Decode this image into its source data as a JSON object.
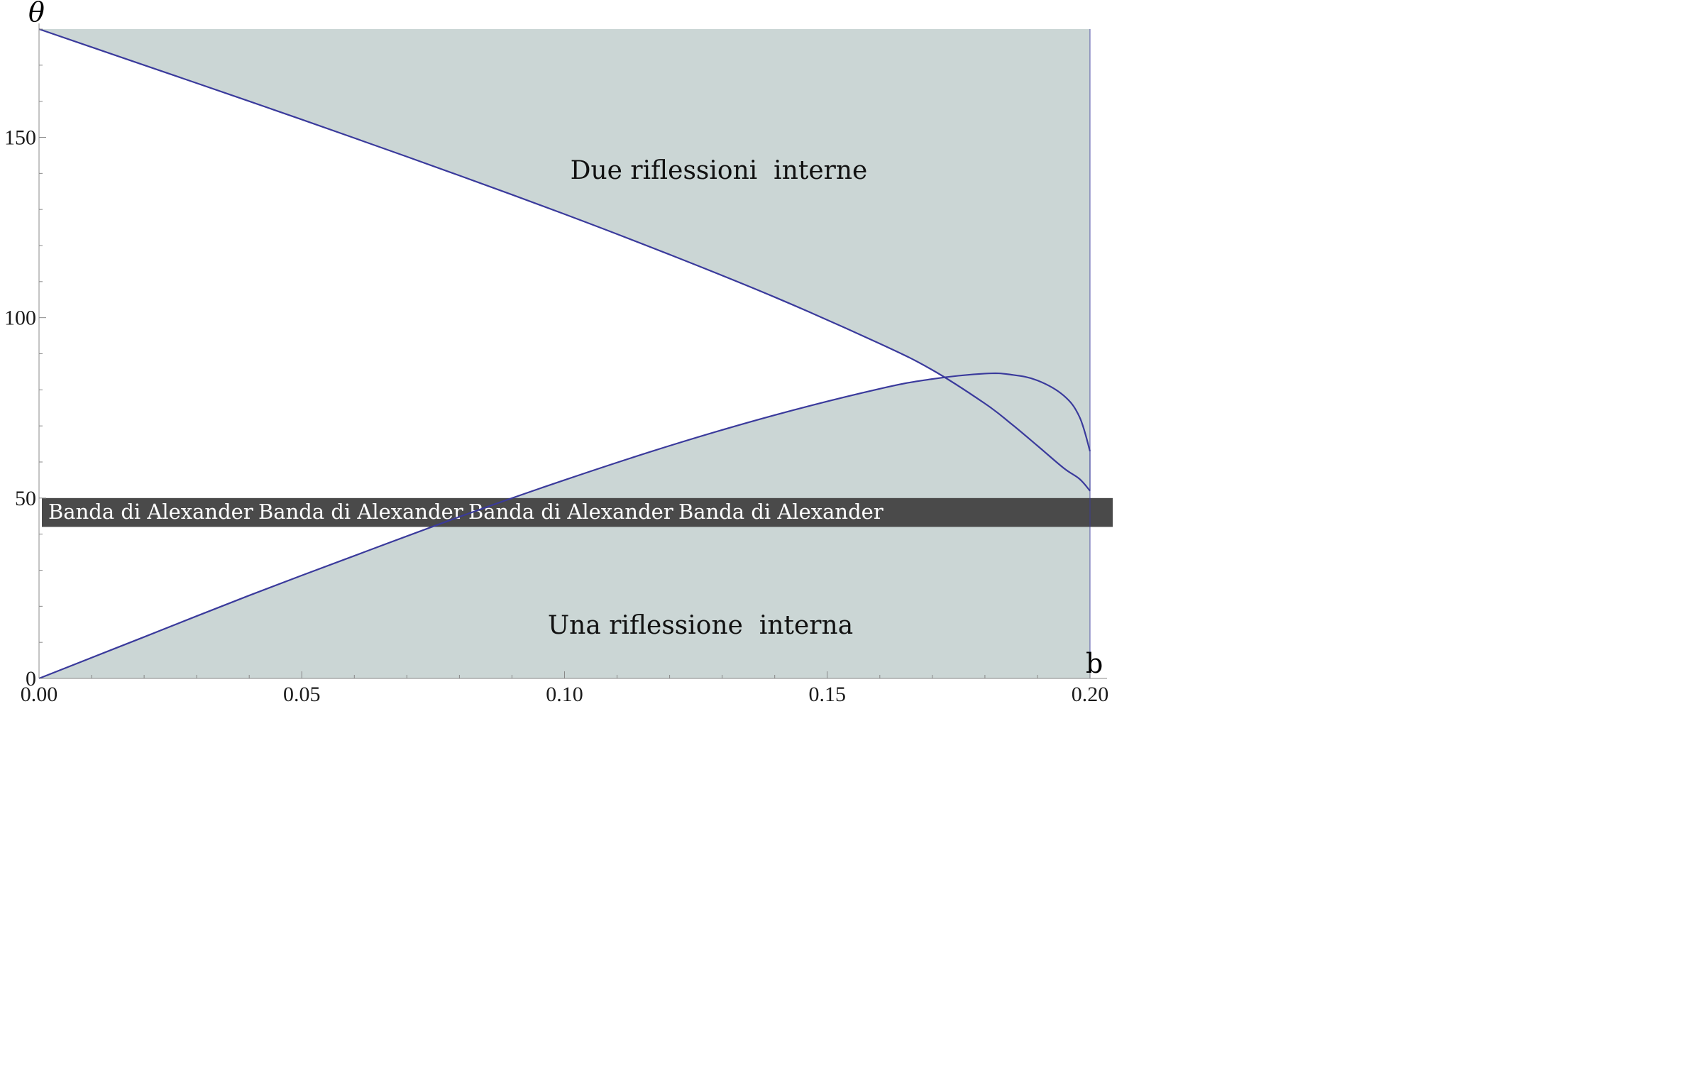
{
  "chart_data": {
    "type": "area",
    "title": "",
    "xlabel": "b",
    "ylabel": "θ",
    "xlim": [
      0,
      0.2
    ],
    "ylim": [
      0,
      180
    ],
    "x_ticks": [
      "0.00",
      "0.05",
      "0.10",
      "0.15",
      "0.20"
    ],
    "y_ticks": [
      "0",
      "50",
      "100",
      "150"
    ],
    "grid": false,
    "colors": {
      "curve": "#3a3a9c",
      "fill": "#cbd6d5",
      "band": "#4a4a4a",
      "band_text": "#ffffff",
      "axis": "#888888"
    },
    "series": [
      {
        "region": "upper",
        "x": [
          0.0,
          0.02,
          0.04,
          0.06,
          0.08,
          0.1,
          0.12,
          0.14,
          0.16,
          0.17,
          0.18,
          0.185,
          0.19,
          0.195,
          0.198,
          0.2
        ],
        "y": [
          180,
          170,
          160,
          149.8,
          139.4,
          128.7,
          117.5,
          105.7,
          92.8,
          85.5,
          76.2,
          70.6,
          64.5,
          58.3,
          55.3,
          52
        ],
        "fill_to": 180
      },
      {
        "region": "lower",
        "x": [
          0.0,
          0.02,
          0.04,
          0.06,
          0.08,
          0.1,
          0.12,
          0.14,
          0.16,
          0.17,
          0.18,
          0.185,
          0.19,
          0.195,
          0.198,
          0.2
        ],
        "y": [
          0,
          11.5,
          23,
          34,
          44.8,
          55,
          64.5,
          73,
          80.3,
          83,
          84.5,
          84.2,
          82.6,
          78.4,
          72.5,
          63
        ],
        "fill_to": 0
      }
    ],
    "band": {
      "label": "Banda di Alexander",
      "labels": [
        "Banda di Alexander",
        "Banda di Alexander",
        "Banda di Alexander",
        "Banda di Alexander"
      ],
      "y_range": [
        42,
        50
      ]
    },
    "annotations": {
      "upper": "Due riflessioni  interne",
      "lower": "Una riflessione  interna"
    }
  }
}
